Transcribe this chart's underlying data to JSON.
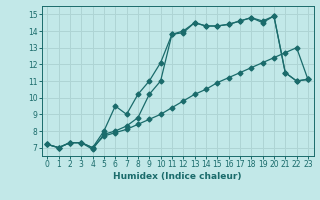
{
  "xlabel": "Humidex (Indice chaleur)",
  "bg_color": "#c2e8e8",
  "grid_color": "#aed4d4",
  "line_color": "#1a6b6b",
  "xlim": [
    -0.5,
    23.5
  ],
  "ylim": [
    6.5,
    15.5
  ],
  "xticks": [
    0,
    1,
    2,
    3,
    4,
    5,
    6,
    7,
    8,
    9,
    10,
    11,
    12,
    13,
    14,
    15,
    16,
    17,
    18,
    19,
    20,
    21,
    22,
    23
  ],
  "yticks": [
    7,
    8,
    9,
    10,
    11,
    12,
    13,
    14,
    15
  ],
  "line1_x": [
    0,
    1,
    2,
    3,
    4,
    5,
    6,
    7,
    8,
    9,
    10,
    11,
    12,
    13,
    14,
    15,
    16,
    17,
    18,
    19,
    20,
    21,
    22,
    23
  ],
  "line1_y": [
    7.2,
    7.0,
    7.3,
    7.3,
    7.0,
    8.0,
    9.5,
    9.0,
    10.2,
    11.0,
    12.1,
    13.8,
    13.9,
    14.5,
    14.3,
    14.3,
    14.4,
    14.6,
    14.8,
    14.6,
    14.9,
    11.5,
    11.0,
    11.1
  ],
  "line2_x": [
    0,
    1,
    2,
    3,
    4,
    5,
    6,
    7,
    8,
    9,
    10,
    11,
    12,
    13,
    14,
    15,
    16,
    17,
    18,
    19,
    20,
    21,
    22,
    23
  ],
  "line2_y": [
    7.2,
    7.0,
    7.3,
    7.3,
    6.9,
    7.8,
    8.0,
    8.3,
    8.8,
    10.2,
    11.0,
    13.8,
    14.0,
    14.5,
    14.3,
    14.3,
    14.4,
    14.6,
    14.8,
    14.5,
    14.9,
    11.5,
    11.0,
    11.1
  ],
  "line3_x": [
    0,
    1,
    2,
    3,
    4,
    5,
    6,
    7,
    8,
    9,
    10,
    11,
    12,
    13,
    14,
    15,
    16,
    17,
    18,
    19,
    20,
    21,
    22,
    23
  ],
  "line3_y": [
    7.2,
    7.0,
    7.3,
    7.3,
    7.0,
    7.7,
    7.9,
    8.1,
    8.4,
    8.7,
    9.0,
    9.4,
    9.8,
    10.2,
    10.5,
    10.9,
    11.2,
    11.5,
    11.8,
    12.1,
    12.4,
    12.7,
    13.0,
    11.1
  ],
  "marker_x1": [
    0,
    1,
    2,
    3,
    4,
    5,
    6,
    7,
    8,
    9,
    10,
    11,
    12,
    13,
    14,
    15,
    16,
    17,
    18,
    19,
    20,
    21,
    22,
    23
  ],
  "marker_x2": [
    0,
    1,
    2,
    3,
    4,
    5,
    6,
    7,
    8,
    9,
    10,
    11,
    12,
    13,
    14,
    15,
    16,
    17,
    18,
    19,
    20,
    21,
    22,
    23
  ],
  "marker_x3": [
    0,
    1,
    2,
    3,
    4,
    5,
    6,
    7,
    8,
    9,
    10,
    11,
    12,
    13,
    14,
    15,
    16,
    17,
    18,
    19,
    20,
    21,
    22,
    23
  ]
}
